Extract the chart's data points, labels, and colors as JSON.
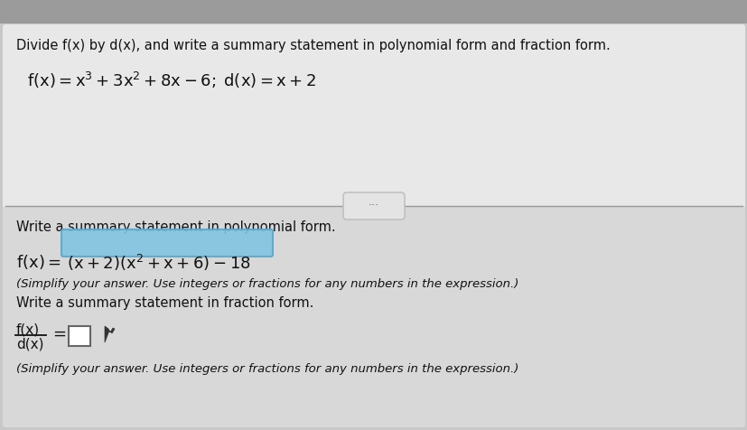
{
  "bg_color": "#c8c8c8",
  "top_section_bg": "#e8e8e8",
  "bottom_section_bg": "#d8d8d8",
  "title_text": "Divide f(x) by d(x), and write a summary statement in polynomial form and fraction form.",
  "section1_label": "Write a summary statement in polynomial form.",
  "section2_label": "Write a summary statement in fraction form.",
  "poly_note": "(Simplify your answer. Use integers or fractions for any numbers in the expression.)",
  "frac_note": "(Simplify your answer. Use integers or fractions for any numbers in the expression.)",
  "highlight_color": "#82c4e0",
  "highlight_edge_color": "#5aa8cc",
  "text_color": "#111111",
  "divider_color": "#999999",
  "dots_bg": "#e4e4e4",
  "dots_edge": "#bbbbbb",
  "box_color": "#ffffff",
  "box_edge": "#666666",
  "top_bar_color": "#9b9b9b",
  "fig_width": 8.28,
  "fig_height": 4.76,
  "dpi": 100
}
